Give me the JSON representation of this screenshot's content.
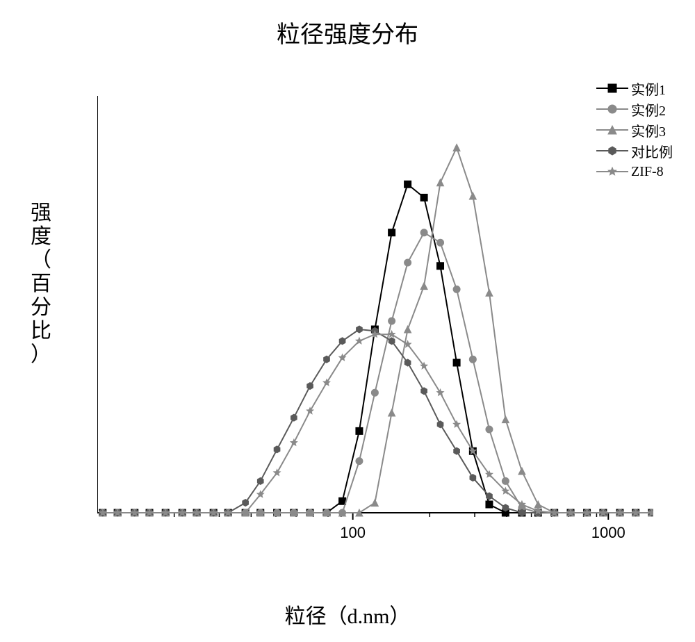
{
  "title": "粒径强度分布",
  "xlabel": "粒径（d.nm）",
  "ylabel": "强度（百分比）",
  "ylim": [
    0,
    25
  ],
  "ytick_step": 5,
  "xscale": "log",
  "xlim": [
    10,
    1500
  ],
  "xticks_major": [
    100,
    1000
  ],
  "axis_color": "#000000",
  "axis_width": 2,
  "marker_size": 10,
  "line_width": 2,
  "x_values": [
    10.5,
    12.0,
    14.0,
    16.0,
    18.5,
    21.5,
    24.5,
    28.5,
    32.5,
    38.0,
    43.5,
    50.5,
    58.8,
    68.0,
    79.0,
    91.0,
    106,
    122,
    142,
    164,
    190,
    220,
    255,
    295,
    342,
    396,
    459,
    531,
    615,
    712,
    825,
    955,
    1110,
    1280,
    1480
  ],
  "series": [
    {
      "key": "s1",
      "label": "实例1",
      "color": "#000000",
      "marker": "square",
      "y": [
        0,
        0,
        0,
        0,
        0,
        0,
        0,
        0,
        0,
        0,
        0,
        0,
        0,
        0,
        0,
        0.7,
        4.9,
        11.0,
        16.8,
        19.7,
        18.9,
        14.8,
        9.0,
        3.7,
        0.5,
        0,
        0,
        0,
        0,
        0,
        0,
        0,
        0,
        0,
        0
      ]
    },
    {
      "key": "s2",
      "label": "实例2",
      "color": "#8a8a8a",
      "marker": "circle",
      "y": [
        0,
        0,
        0,
        0,
        0,
        0,
        0,
        0,
        0,
        0,
        0,
        0,
        0,
        0,
        0,
        0,
        3.1,
        7.2,
        11.5,
        15.0,
        16.8,
        16.2,
        13.4,
        9.2,
        5.0,
        1.9,
        0.3,
        0,
        0,
        0,
        0,
        0,
        0,
        0,
        0
      ]
    },
    {
      "key": "s3",
      "label": "实例3",
      "color": "#8a8a8a",
      "marker": "triangle",
      "y": [
        0,
        0,
        0,
        0,
        0,
        0,
        0,
        0,
        0,
        0,
        0,
        0,
        0,
        0,
        0,
        0,
        0,
        0.6,
        6.0,
        11.0,
        13.6,
        19.8,
        21.9,
        19.0,
        13.2,
        5.6,
        2.5,
        0.5,
        0,
        0,
        0,
        0,
        0,
        0,
        0
      ]
    },
    {
      "key": "s4",
      "label": "对比例",
      "color": "#5a5a5a",
      "marker": "hexagon",
      "y": [
        0,
        0,
        0,
        0,
        0,
        0,
        0,
        0,
        0,
        0.6,
        1.9,
        3.8,
        5.7,
        7.6,
        9.2,
        10.3,
        11.0,
        10.9,
        10.3,
        9.0,
        7.3,
        5.3,
        3.7,
        2.1,
        1.0,
        0.3,
        0,
        0,
        0,
        0,
        0,
        0,
        0,
        0,
        0
      ]
    },
    {
      "key": "s5",
      "label": "ZIF-8",
      "color": "#8a8a8a",
      "marker": "star",
      "y": [
        0,
        0,
        0,
        0,
        0,
        0,
        0,
        0,
        0,
        0,
        1.1,
        2.4,
        4.2,
        6.1,
        7.8,
        9.3,
        10.3,
        10.7,
        10.7,
        10.1,
        8.8,
        7.2,
        5.3,
        3.7,
        2.3,
        1.3,
        0.5,
        0.1,
        0,
        0,
        0,
        0,
        0,
        0,
        0
      ]
    }
  ]
}
